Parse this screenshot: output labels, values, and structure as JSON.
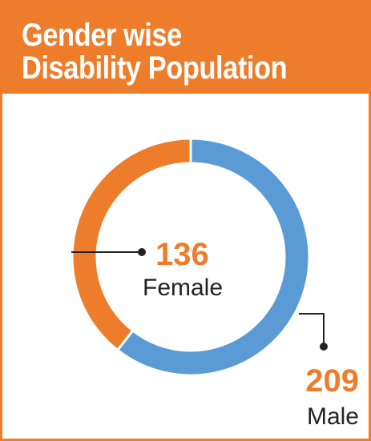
{
  "title_lines": [
    "Gender wise",
    "Disability Population"
  ],
  "colors": {
    "accent": "#ee7d2b",
    "male": "#5b9bd5",
    "female": "#ee7d2b",
    "text": "#222222"
  },
  "chart_data": {
    "type": "pie",
    "style": "donut",
    "title": "Gender wise Disability Population",
    "slices": [
      {
        "label": "Male",
        "value": 209,
        "color": "#5b9bd5"
      },
      {
        "label": "Female",
        "value": 136,
        "color": "#ee7d2b"
      }
    ],
    "start": "top",
    "direction": "clockwise"
  }
}
